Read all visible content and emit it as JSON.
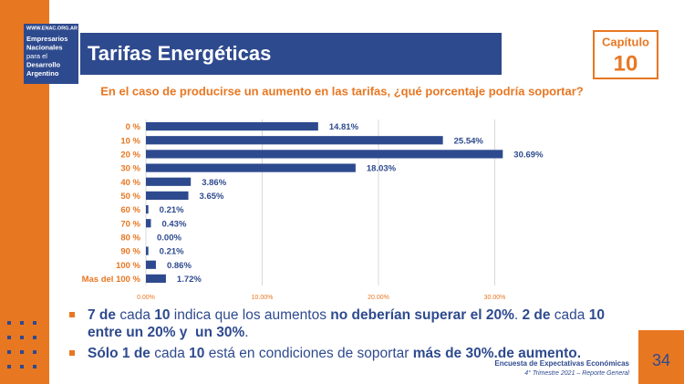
{
  "slide": {
    "logo": {
      "url": "WWW.ENAC.ORG.AR",
      "lines": [
        "Empresarios",
        "Nacionales",
        "para el",
        "Desarrollo",
        "Argentino"
      ]
    },
    "title": "Tarifas Energéticas",
    "chapter_label": "Capítulo",
    "chapter_number": "10",
    "bullets": [
      [
        {
          "text": "7 de",
          "bold": true
        },
        {
          "text": " cada ",
          "bold": false
        },
        {
          "text": "10",
          "bold": true
        },
        {
          "text": " indica que los aumentos ",
          "bold": false
        },
        {
          "text": "no deberían superar el 20%",
          "bold": true
        },
        {
          "text": ". ",
          "bold": false
        },
        {
          "text": "2 de",
          "bold": true
        },
        {
          "text": " cada ",
          "bold": false
        },
        {
          "text": "10 entre un 20% y  un 30%",
          "bold": true
        },
        {
          "text": ".",
          "bold": false
        }
      ],
      [
        {
          "text": "Sólo 1 de",
          "bold": true
        },
        {
          "text": " cada ",
          "bold": false
        },
        {
          "text": "10",
          "bold": true
        },
        {
          "text": " está en condiciones de soportar ",
          "bold": false
        },
        {
          "text": "más de 30%.de aumento.",
          "bold": true
        }
      ]
    ],
    "footer": {
      "line1": "Encuesta de Expectativas Económicas",
      "line2": "4° Trimestre 2021 – Reporte General"
    },
    "page_number": "34"
  },
  "chart_data": {
    "type": "bar",
    "orientation": "horizontal",
    "title": "En el caso de producirse un aumento en las tarifas, ¿qué porcentaje podría soportar?",
    "categories": [
      "0 %",
      "10 %",
      "20 %",
      "30 %",
      "40 %",
      "50 %",
      "60 %",
      "70 %",
      "80 %",
      "90 %",
      "100 %",
      "Mas del 100 %"
    ],
    "values": [
      14.81,
      25.54,
      30.69,
      18.03,
      3.86,
      3.65,
      0.21,
      0.43,
      0.0,
      0.21,
      0.86,
      1.72
    ],
    "value_labels": [
      "14.81%",
      "25.54%",
      "30.69%",
      "18.03%",
      "3.86%",
      "3.65%",
      "0.21%",
      "0.43%",
      "0.00%",
      "0.21%",
      "0.86%",
      "1.72%"
    ],
    "color": "#2e4a8e",
    "xlim": [
      0,
      31
    ],
    "xticks": [
      {
        "value": 0,
        "label": "0.00%"
      },
      {
        "value": 10,
        "label": "10.00%"
      },
      {
        "value": 20,
        "label": "20.00%"
      },
      {
        "value": 30,
        "label": "30.00%"
      }
    ],
    "grid": true
  }
}
